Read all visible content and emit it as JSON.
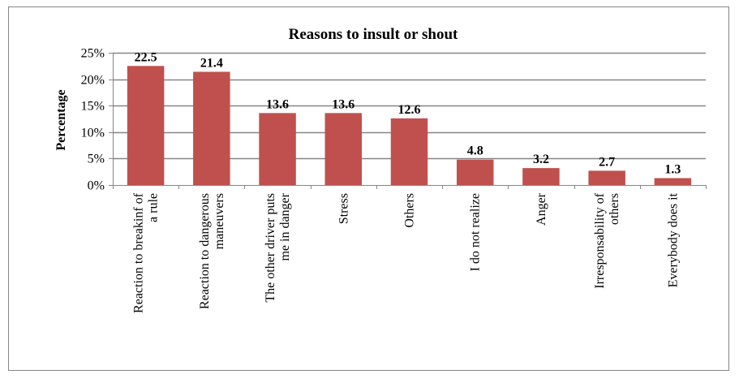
{
  "chart_data": {
    "type": "bar",
    "title": "Reasons to insult or shout",
    "xlabel": "",
    "ylabel": "Percentage",
    "ylim": [
      0,
      25
    ],
    "yticks": [
      "0%",
      "5%",
      "10%",
      "15%",
      "20%",
      "25%"
    ],
    "grid": true,
    "legend": "none",
    "categories": [
      [
        "Reaction to breakinf of",
        "a rule"
      ],
      [
        "Reaction to dangerous",
        "maneuvers"
      ],
      [
        "The other driver puts",
        "me in danger"
      ],
      [
        "Stress"
      ],
      [
        "Others"
      ],
      [
        "I do not realize"
      ],
      [
        "Anger"
      ],
      [
        "Irresponsability of",
        "others"
      ],
      [
        "Everybody does it"
      ]
    ],
    "values": [
      22.5,
      21.4,
      13.6,
      13.6,
      12.6,
      4.8,
      3.2,
      2.7,
      1.3
    ],
    "data_labels": [
      "22.5",
      "21.4",
      "13.6",
      "13.6",
      "12.6",
      "4.8",
      "3.2",
      "2.7",
      "1.3"
    ],
    "colors": {
      "bar": "#C0504D",
      "grid": "#868686",
      "axis": "#868686",
      "frame": "#868686"
    }
  }
}
